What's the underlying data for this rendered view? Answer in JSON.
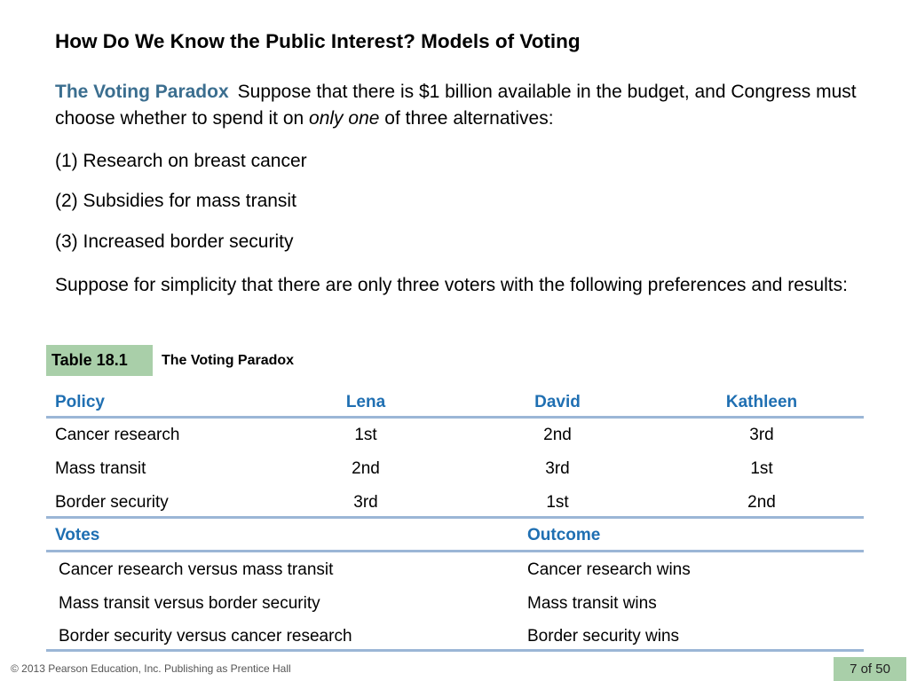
{
  "slide": {
    "title": "How Do We Know the Public Interest? Models of Voting",
    "intro_heading": "The Voting Paradox",
    "intro_text_before": "Suppose that there is $1 billion available in the budget, and Congress must choose whether to spend it on ",
    "intro_emphasis": "only one",
    "intro_text_after": " of three alternatives:",
    "alternatives": [
      "(1) Research on breast cancer",
      "(2) Subsidies for mass transit",
      "(3) Increased border security"
    ],
    "closing": "Suppose for simplicity that there are only three voters with the following preferences and results:"
  },
  "table": {
    "tag": "Table 18.1",
    "caption": "The Voting Paradox",
    "headers": {
      "policy": "Policy",
      "lena": "Lena",
      "david": "David",
      "kathleen": "Kathleen"
    },
    "rows": [
      {
        "policy": "Cancer research",
        "lena": "1st",
        "david": "2nd",
        "kathleen": "3rd"
      },
      {
        "policy": "Mass transit",
        "lena": "2nd",
        "david": "3rd",
        "kathleen": "1st"
      },
      {
        "policy": "Border security",
        "lena": "3rd",
        "david": "1st",
        "kathleen": "2nd"
      }
    ],
    "votes_header": "Votes",
    "outcome_header": "Outcome",
    "votes": [
      {
        "vote": "Cancer research versus mass transit",
        "outcome": "Cancer research wins"
      },
      {
        "vote": "Mass transit versus border security",
        "outcome": "Mass transit wins"
      },
      {
        "vote": "Border security versus cancer research",
        "outcome": "Border security wins"
      }
    ]
  },
  "footer": {
    "copyright": "© 2013 Pearson Education, Inc. Publishing as Prentice Hall",
    "page": "7 of 50"
  },
  "colors": {
    "heading_blue": "#3b6e8f",
    "table_header_blue": "#1f6fb2",
    "rule_blue": "#9bb6d6",
    "tag_green": "#a9cfa9"
  }
}
